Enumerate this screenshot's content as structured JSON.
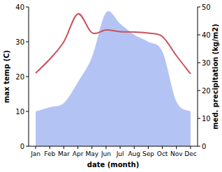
{
  "chart_data": {
    "type": "line",
    "x_label": "date (month)",
    "y_label": "max temp (C)",
    "y2_label": "med. precipitation (kg/m2)",
    "categories": [
      "Jan",
      "Feb",
      "Mar",
      "Apr",
      "May",
      "Jun",
      "Jul",
      "Aug",
      "Sep",
      "Oct",
      "Nov",
      "Dec"
    ],
    "series": [
      {
        "type": "area",
        "axis": "y2",
        "color": "#b3c3f3",
        "values": [
          12.5,
          14,
          15.5,
          23,
          32,
          48,
          44,
          40,
          37.5,
          34,
          16,
          12.5
        ]
      },
      {
        "type": "line",
        "axis": "y",
        "color": "#c8525a",
        "values": [
          21,
          25,
          30,
          38,
          32.6,
          33.4,
          32.9,
          32.8,
          32.5,
          31.5,
          26,
          20.8
        ]
      }
    ],
    "ylim": [
      0,
      40
    ],
    "yticks": [
      0,
      10,
      20,
      30,
      40
    ],
    "y2lim": [
      0,
      50
    ],
    "y2ticks": [
      0,
      10,
      20,
      30,
      40,
      50
    ],
    "grid": false
  }
}
